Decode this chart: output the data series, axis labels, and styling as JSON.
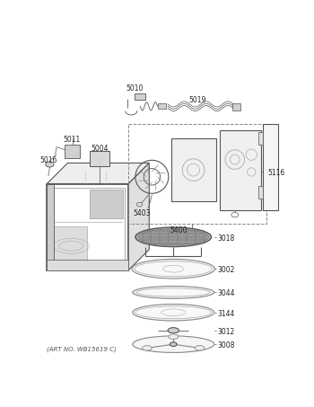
{
  "art_no": "(ART NO. WB15619 C)",
  "bg_color": "#ffffff",
  "lc": "#555555",
  "figsize": [
    3.5,
    4.53
  ],
  "dpi": 100,
  "label_fontsize": 5.5,
  "caption_fontsize": 5.0
}
